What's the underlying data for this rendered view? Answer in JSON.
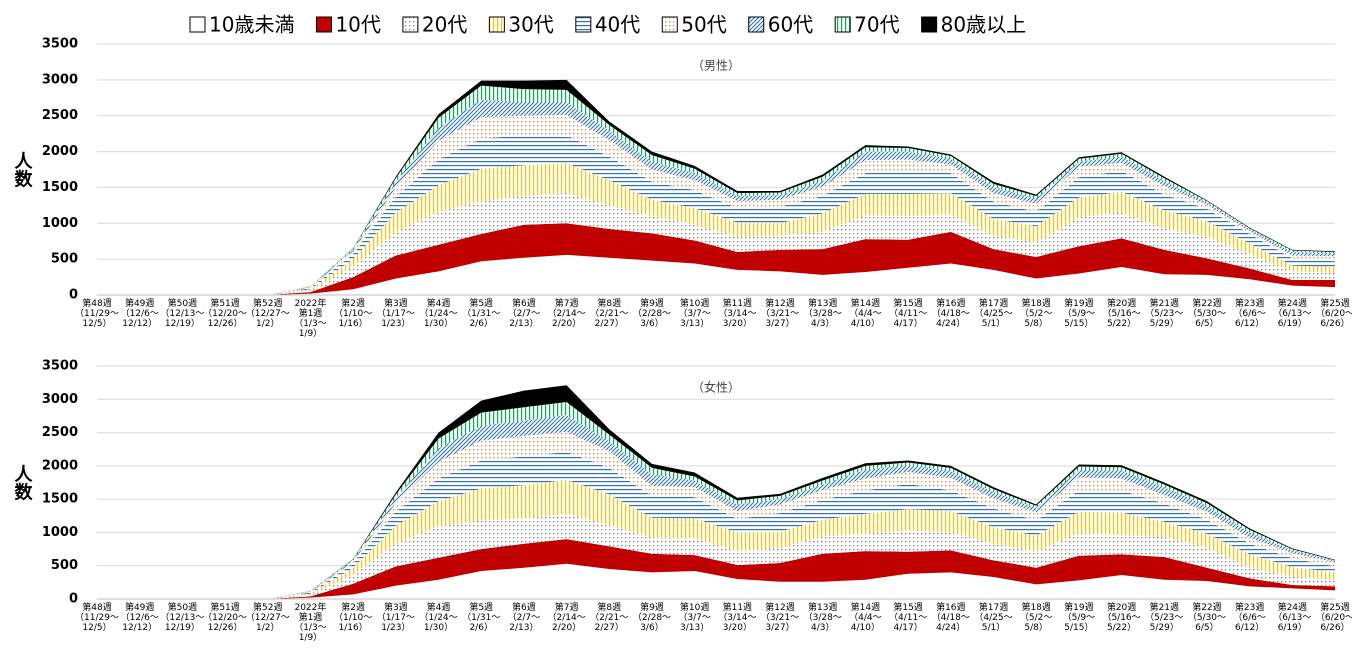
{
  "chart_data": [
    {
      "type": "area",
      "stacked": true,
      "subtitle": "（男性）",
      "y_label": "人数",
      "grid": true,
      "legend": "top",
      "categories": [
        "第48週\n（11/29～\n12/5）",
        "第49週\n（12/6～\n12/12）",
        "第50週\n（12/13～\n12/19）",
        "第51週\n（12/20～\n12/26）",
        "第52週\n（12/27～\n1/2）",
        "2022年\n第1週\n（1/3～\n1/9）",
        "第2週\n（1/10～\n1/16）",
        "第3週\n（1/17～\n1/23）",
        "第4週\n（1/24～\n1/30）",
        "第5週\n（1/31～\n2/6）",
        "第6週\n（2/7～\n2/13）",
        "第7週\n（2/14～\n2/20）",
        "第8週\n（2/21～\n2/27）",
        "第9週\n（2/28～\n3/6）",
        "第10週\n（3/7～\n3/13）",
        "第11週\n（3/14～\n3/20）",
        "第12週\n（3/21～\n3/27）",
        "第13週\n（3/28～\n4/3）",
        "第14週\n（4/4～\n4/10）",
        "第15週\n（4/11～\n4/17）",
        "第16週\n（4/18～\n4/24）",
        "第17週\n（4/25～\n5/1）",
        "第18週\n（5/2～\n5/8）",
        "第19週\n（5/9～\n5/15）",
        "第20週\n（5/16～\n5/22）",
        "第21週\n（5/23～\n5/29）",
        "第22週\n（5/30～\n6/5）",
        "第23週\n（6/6～\n6/12）",
        "第24週\n（6/13～\n6/19）",
        "第25週\n（6/20～\n6/26）"
      ],
      "ylim": [
        0,
        3500
      ],
      "yticks": [
        0,
        500,
        1000,
        1500,
        2000,
        2500,
        3000,
        3500
      ],
      "series": [
        {
          "name": "10歳未満",
          "color": "#ffffff",
          "pattern": "solid",
          "values": [
            0,
            0,
            0,
            0,
            0,
            20,
            80,
            230,
            330,
            470,
            520,
            560,
            520,
            480,
            440,
            350,
            330,
            280,
            320,
            380,
            440,
            350,
            230,
            300,
            390,
            290,
            280,
            220,
            130,
            110
          ]
        },
        {
          "name": "10代",
          "color": "#c00000",
          "pattern": "solid",
          "values": [
            0,
            0,
            0,
            0,
            0,
            20,
            170,
            320,
            370,
            380,
            460,
            440,
            400,
            380,
            320,
            250,
            300,
            360,
            460,
            390,
            440,
            290,
            300,
            380,
            400,
            340,
            230,
            150,
            80,
            100
          ]
        },
        {
          "name": "20代",
          "color": "#7f7f7f",
          "pattern": "dots",
          "values": [
            0,
            0,
            0,
            0,
            0,
            20,
            150,
            330,
            460,
            450,
            400,
            420,
            330,
            240,
            220,
            210,
            200,
            240,
            330,
            330,
            240,
            190,
            200,
            400,
            360,
            300,
            300,
            200,
            120,
            100
          ]
        },
        {
          "name": "30代",
          "color": "#ffc000",
          "pattern": "vlines",
          "values": [
            0,
            0,
            0,
            0,
            0,
            20,
            100,
            270,
            370,
            460,
            430,
            420,
            350,
            230,
            230,
            200,
            170,
            260,
            300,
            310,
            300,
            230,
            230,
            280,
            290,
            250,
            220,
            150,
            80,
            80
          ]
        },
        {
          "name": "40代",
          "color": "#2e75b6",
          "pattern": "hlines",
          "values": [
            0,
            0,
            0,
            0,
            0,
            15,
            70,
            220,
            360,
            420,
            420,
            390,
            330,
            250,
            250,
            200,
            230,
            240,
            290,
            330,
            280,
            240,
            200,
            280,
            290,
            220,
            170,
            130,
            100,
            80
          ]
        },
        {
          "name": "50代",
          "color": "#ed7d31",
          "pattern": "dots",
          "values": [
            0,
            0,
            0,
            0,
            0,
            10,
            40,
            130,
            260,
            300,
            270,
            280,
            230,
            170,
            140,
            100,
            100,
            130,
            180,
            150,
            120,
            120,
            110,
            150,
            110,
            120,
            60,
            40,
            40,
            70
          ]
        },
        {
          "name": "60代",
          "color": "#2e75b6",
          "pattern": "diag",
          "values": [
            0,
            0,
            0,
            0,
            0,
            8,
            20,
            80,
            180,
            240,
            190,
            180,
            130,
            110,
            100,
            70,
            60,
            80,
            120,
            110,
            80,
            90,
            70,
            70,
            90,
            70,
            30,
            30,
            50,
            40
          ]
        },
        {
          "name": "70代",
          "color": "#00b050",
          "pattern": "vlines",
          "values": [
            0,
            0,
            0,
            0,
            0,
            5,
            15,
            50,
            140,
            200,
            180,
            170,
            80,
            90,
            60,
            40,
            40,
            60,
            60,
            50,
            40,
            40,
            40,
            40,
            40,
            40,
            20,
            10,
            20,
            20
          ]
        },
        {
          "name": "80歳以上",
          "color": "#000000",
          "pattern": "solid",
          "values": [
            0,
            0,
            0,
            0,
            0,
            2,
            5,
            20,
            50,
            70,
            120,
            140,
            50,
            50,
            40,
            30,
            20,
            30,
            30,
            20,
            20,
            30,
            20,
            20,
            20,
            20,
            10,
            10,
            10,
            10
          ]
        }
      ]
    },
    {
      "type": "area",
      "stacked": true,
      "subtitle": "（女性）",
      "y_label": "人数",
      "grid": true,
      "categories": [
        "第48週\n（11/29～\n12/5）",
        "第49週\n（12/6～\n12/12）",
        "第50週\n（12/13～\n12/19）",
        "第51週\n（12/20～\n12/26）",
        "第52週\n（12/27～\n1/2）",
        "2022年\n第1週\n（1/3～\n1/9）",
        "第2週\n（1/10～\n1/16）",
        "第3週\n（1/17～\n1/23）",
        "第4週\n（1/24～\n1/30）",
        "第5週\n（1/31～\n2/6）",
        "第6週\n（2/7～\n2/13）",
        "第7週\n（2/14～\n2/20）",
        "第8週\n（2/21～\n2/27）",
        "第9週\n（2/28～\n3/6）",
        "第10週\n（3/7～\n3/13）",
        "第11週\n（3/14～\n3/20）",
        "第12週\n（3/21～\n3/27）",
        "第13週\n（3/28～\n4/3）",
        "第14週\n（4/4～\n4/10）",
        "第15週\n（4/11～\n4/17）",
        "第16週\n（4/18～\n4/24）",
        "第17週\n（4/25～\n5/1）",
        "第18週\n（5/2～\n5/8）",
        "第19週\n（5/9～\n5/15）",
        "第20週\n（5/16～\n5/22）",
        "第21週\n（5/23～\n5/29）",
        "第22週\n（5/30～\n6/5）",
        "第23週\n（6/6～\n6/12）",
        "第24週\n（6/13～\n6/19）",
        "第25週\n（6/20～\n6/26）"
      ],
      "ylim": [
        0,
        3500
      ],
      "yticks": [
        0,
        500,
        1000,
        1500,
        2000,
        2500,
        3000,
        3500
      ],
      "series": [
        {
          "values": [
            0,
            0,
            0,
            0,
            0,
            20,
            70,
            200,
            290,
            420,
            470,
            530,
            450,
            400,
            420,
            300,
            260,
            260,
            290,
            380,
            400,
            330,
            220,
            280,
            360,
            290,
            270,
            190,
            160,
            130
          ]
        },
        {
          "values": [
            0,
            0,
            0,
            0,
            0,
            20,
            160,
            290,
            330,
            330,
            360,
            370,
            340,
            280,
            240,
            210,
            280,
            420,
            430,
            330,
            330,
            250,
            250,
            370,
            310,
            340,
            200,
            120,
            50,
            60
          ]
        },
        {
          "values": [
            0,
            0,
            0,
            0,
            0,
            20,
            140,
            340,
            470,
            430,
            380,
            380,
            320,
            240,
            250,
            210,
            220,
            260,
            260,
            320,
            270,
            250,
            240,
            340,
            290,
            300,
            300,
            160,
            120,
            100
          ]
        },
        {
          "values": [
            0,
            0,
            0,
            0,
            0,
            20,
            100,
            270,
            380,
            480,
            500,
            510,
            460,
            300,
            300,
            280,
            250,
            250,
            300,
            320,
            320,
            250,
            240,
            320,
            340,
            230,
            210,
            200,
            150,
            110
          ]
        },
        {
          "values": [
            0,
            0,
            0,
            0,
            0,
            15,
            60,
            210,
            340,
            420,
            430,
            420,
            400,
            330,
            320,
            200,
            280,
            300,
            350,
            380,
            310,
            280,
            230,
            320,
            330,
            270,
            210,
            160,
            130,
            90
          ]
        },
        {
          "values": [
            0,
            0,
            0,
            0,
            0,
            10,
            30,
            130,
            250,
            300,
            310,
            300,
            250,
            150,
            150,
            120,
            130,
            150,
            180,
            180,
            190,
            150,
            120,
            200,
            180,
            130,
            120,
            90,
            80,
            60
          ]
        },
        {
          "values": [
            0,
            0,
            0,
            0,
            0,
            8,
            20,
            80,
            200,
            220,
            230,
            250,
            150,
            170,
            100,
            100,
            80,
            80,
            130,
            100,
            100,
            100,
            70,
            110,
            120,
            120,
            90,
            80,
            40,
            20
          ]
        },
        {
          "values": [
            0,
            0,
            0,
            0,
            0,
            5,
            15,
            50,
            150,
            200,
            200,
            200,
            100,
            100,
            60,
            60,
            50,
            60,
            60,
            40,
            50,
            40,
            30,
            50,
            50,
            40,
            40,
            40,
            20,
            10
          ]
        },
        {
          "values": [
            0,
            0,
            0,
            0,
            0,
            2,
            5,
            30,
            90,
            180,
            250,
            250,
            80,
            60,
            60,
            40,
            30,
            40,
            40,
            30,
            30,
            30,
            20,
            30,
            30,
            30,
            30,
            20,
            10,
            10
          ]
        }
      ]
    }
  ]
}
